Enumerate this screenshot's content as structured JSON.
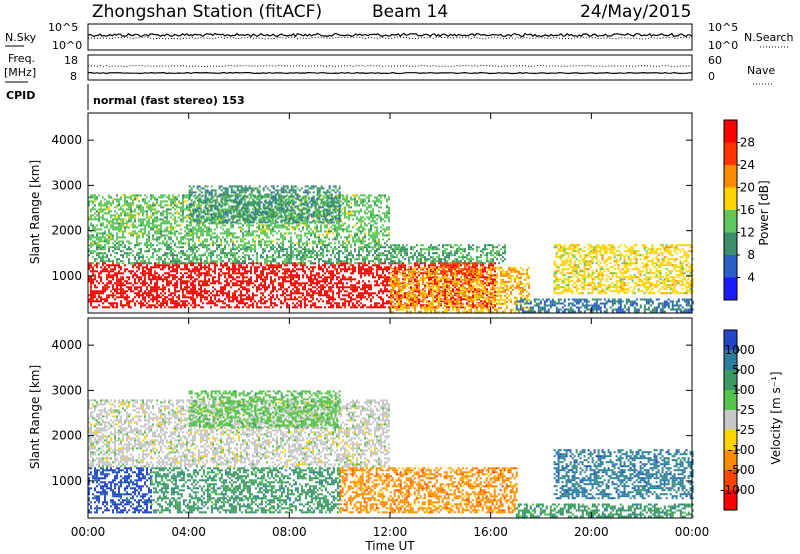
{
  "header": {
    "station": "Zhongshan Station (fitACF)",
    "beam": "Beam 14",
    "date": "24/May/2015"
  },
  "panels": {
    "nsky_label": "N.Sky",
    "nsearch_label": "N.Search",
    "freq_label_1": "Freq.",
    "freq_label_2": "[MHz]",
    "nave_label": "Nave",
    "cpid_label": "CPID",
    "cpid_value": "normal (fast stereo) 153",
    "nsky_ticks": [
      "10^5",
      "10^0"
    ],
    "nsearch_ticks": [
      "10^5",
      "10^0"
    ],
    "freq_ticks": [
      "18",
      "8"
    ],
    "nave_ticks": [
      "60",
      "0"
    ]
  },
  "colors": {
    "power": [
      "#1a1aff",
      "#2a5fc8",
      "#3a8f6a",
      "#5ec85e",
      "#ffd400",
      "#ff8c00",
      "#ff3300",
      "#ff0000"
    ],
    "velocity": [
      "#2346c8",
      "#2a7fa0",
      "#3b9a62",
      "#55c44a",
      "#c8c8c8",
      "#ffd400",
      "#ff8c00",
      "#ff4400",
      "#ff0000"
    ]
  },
  "chart_data": [
    {
      "type": "heatmap",
      "name": "power",
      "xlabel": "Time UT",
      "ylabel": "Slant Range [km]",
      "x_ticks": [
        "00:00",
        "04:00",
        "08:00",
        "12:00",
        "16:00",
        "20:00",
        "00:00"
      ],
      "x_range": [
        0,
        24
      ],
      "y_ticks": [
        1000,
        2000,
        3000,
        4000
      ],
      "ylim": [
        180,
        4600
      ],
      "colorbar_label": "Power [dB]",
      "colorbar_ticks": [
        4,
        8,
        12,
        16,
        20,
        24,
        28
      ],
      "colorbar_range": [
        0,
        32
      ],
      "regions": [
        {
          "t0": 0.0,
          "t1": 16.2,
          "r0": 300,
          "r1": 1300,
          "level": 30
        },
        {
          "t0": 0.0,
          "t1": 16.6,
          "r0": 1300,
          "r1": 1700,
          "level": 12
        },
        {
          "t0": 0.0,
          "t1": 12.0,
          "r0": 1700,
          "r1": 2800,
          "level": 14
        },
        {
          "t0": 4.0,
          "t1": 10.0,
          "r0": 2200,
          "r1": 3000,
          "level": 10
        },
        {
          "t0": 12.0,
          "t1": 17.5,
          "r0": 200,
          "r1": 1200,
          "level": 20
        },
        {
          "t0": 14.0,
          "t1": 15.5,
          "r0": 1000,
          "r1": 1300,
          "level": 26
        },
        {
          "t0": 17.0,
          "t1": 24.0,
          "r0": 200,
          "r1": 500,
          "level": 8
        },
        {
          "t0": 18.5,
          "t1": 24.0,
          "r0": 600,
          "r1": 1700,
          "level": 18
        }
      ]
    },
    {
      "type": "heatmap",
      "name": "velocity",
      "xlabel": "Time UT",
      "ylabel": "Slant Range [km]",
      "x_ticks": [
        "00:00",
        "04:00",
        "08:00",
        "12:00",
        "16:00",
        "20:00",
        "00:00"
      ],
      "x_range": [
        0,
        24
      ],
      "y_ticks": [
        1000,
        2000,
        3000,
        4000
      ],
      "ylim": [
        180,
        4600
      ],
      "colorbar_label": "Velocity [m s⁻¹]",
      "colorbar_ticks": [
        "1000",
        "500",
        "100",
        "25",
        "-25",
        "-100",
        "-500",
        "-1000"
      ],
      "regions": [
        {
          "t0": 0.0,
          "t1": 2.5,
          "r0": 300,
          "r1": 1300,
          "level": 1000
        },
        {
          "t0": 2.5,
          "t1": 10.0,
          "r0": 300,
          "r1": 1300,
          "level": 100
        },
        {
          "t0": 10.0,
          "t1": 17.0,
          "r0": 300,
          "r1": 1300,
          "level": -100
        },
        {
          "t0": 0.0,
          "t1": 12.0,
          "r0": 1300,
          "r1": 2800,
          "level": 0
        },
        {
          "t0": 4.0,
          "t1": 10.0,
          "r0": 2200,
          "r1": 3000,
          "level": 25
        },
        {
          "t0": 17.0,
          "t1": 24.0,
          "r0": 200,
          "r1": 500,
          "level": 100
        },
        {
          "t0": 18.5,
          "t1": 24.0,
          "r0": 600,
          "r1": 1700,
          "level": 500
        }
      ]
    }
  ]
}
